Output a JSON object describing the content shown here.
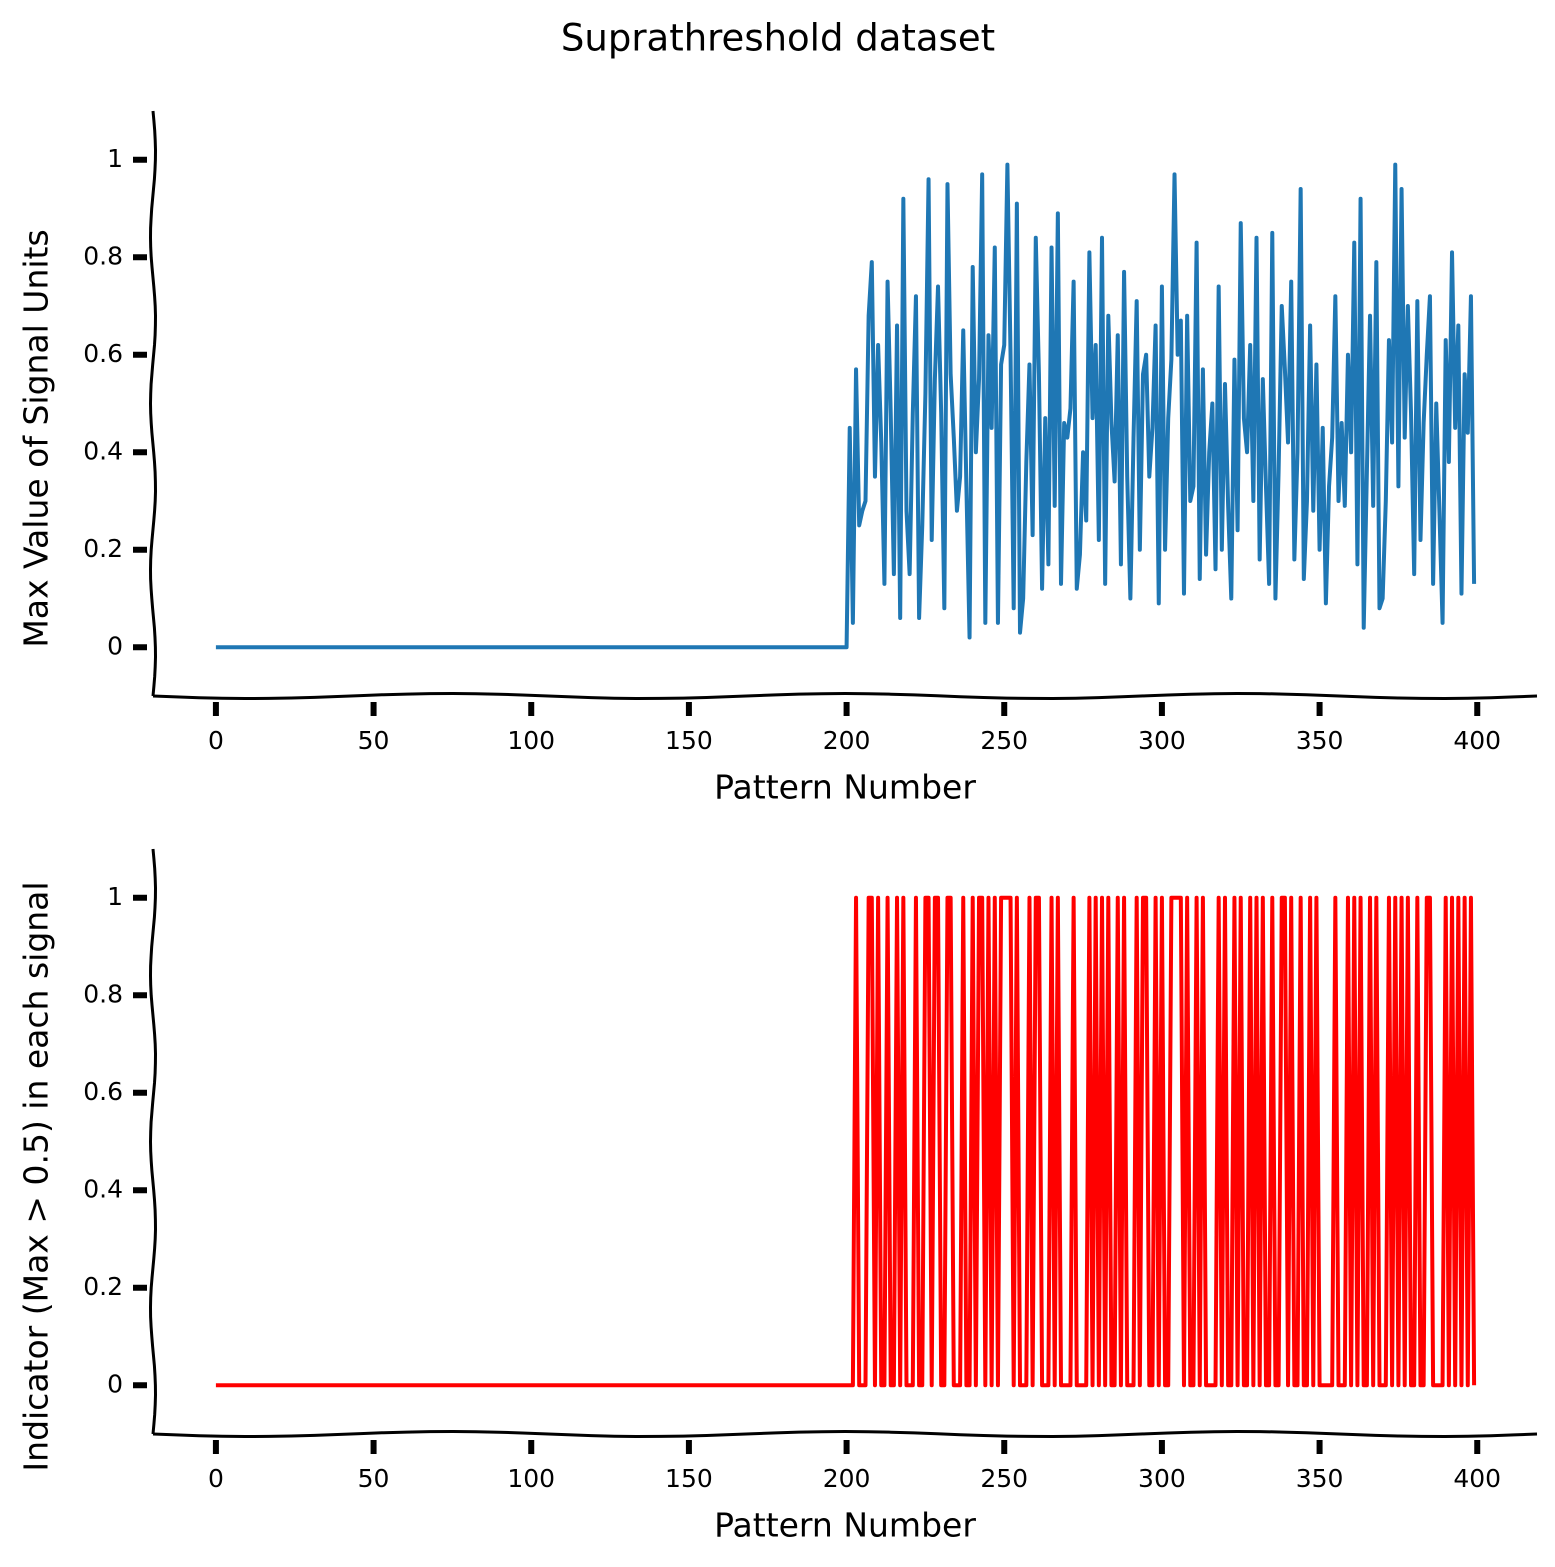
{
  "title": "Suprathreshold dataset",
  "chart_data": [
    {
      "type": "line",
      "xlabel": "Pattern Number",
      "ylabel": "Max Value of Signal Units",
      "xlim": [
        -19.95,
        418.95
      ],
      "xticks": [
        0,
        50,
        100,
        150,
        200,
        250,
        300,
        350,
        400
      ],
      "ylim": [
        -0.1,
        1.1
      ],
      "yticks": [
        0.0,
        0.2,
        0.4,
        0.6,
        0.8,
        1.0
      ],
      "series": [
        {
          "color": "#1f77b4",
          "values": [
            0,
            0,
            0,
            0,
            0,
            0,
            0,
            0,
            0,
            0,
            0,
            0,
            0,
            0,
            0,
            0,
            0,
            0,
            0,
            0,
            0,
            0,
            0,
            0,
            0,
            0,
            0,
            0,
            0,
            0,
            0,
            0,
            0,
            0,
            0,
            0,
            0,
            0,
            0,
            0,
            0,
            0,
            0,
            0,
            0,
            0,
            0,
            0,
            0,
            0,
            0,
            0,
            0,
            0,
            0,
            0,
            0,
            0,
            0,
            0,
            0,
            0,
            0,
            0,
            0,
            0,
            0,
            0,
            0,
            0,
            0,
            0,
            0,
            0,
            0,
            0,
            0,
            0,
            0,
            0,
            0,
            0,
            0,
            0,
            0,
            0,
            0,
            0,
            0,
            0,
            0,
            0,
            0,
            0,
            0,
            0,
            0,
            0,
            0,
            0,
            0,
            0,
            0,
            0,
            0,
            0,
            0,
            0,
            0,
            0,
            0,
            0,
            0,
            0,
            0,
            0,
            0,
            0,
            0,
            0,
            0,
            0,
            0,
            0,
            0,
            0,
            0,
            0,
            0,
            0,
            0,
            0,
            0,
            0,
            0,
            0,
            0,
            0,
            0,
            0,
            0,
            0,
            0,
            0,
            0,
            0,
            0,
            0,
            0,
            0,
            0,
            0,
            0,
            0,
            0,
            0,
            0,
            0,
            0,
            0,
            0,
            0,
            0,
            0,
            0,
            0,
            0,
            0,
            0,
            0,
            0,
            0,
            0,
            0,
            0,
            0,
            0,
            0,
            0,
            0,
            0,
            0,
            0,
            0,
            0,
            0,
            0,
            0,
            0,
            0,
            0,
            0,
            0,
            0,
            0,
            0,
            0,
            0,
            0,
            0,
            0.0,
            0.45,
            0.05,
            0.57,
            0.25,
            0.28,
            0.3,
            0.68,
            0.79,
            0.35,
            0.62,
            0.42,
            0.13,
            0.75,
            0.48,
            0.15,
            0.66,
            0.06,
            0.92,
            0.28,
            0.15,
            0.48,
            0.72,
            0.06,
            0.25,
            0.52,
            0.96,
            0.22,
            0.55,
            0.74,
            0.48,
            0.08,
            0.95,
            0.56,
            0.43,
            0.28,
            0.35,
            0.65,
            0.33,
            0.02,
            0.78,
            0.4,
            0.55,
            0.97,
            0.05,
            0.64,
            0.45,
            0.82,
            0.05,
            0.58,
            0.62,
            0.99,
            0.6,
            0.08,
            0.91,
            0.03,
            0.1,
            0.38,
            0.58,
            0.23,
            0.84,
            0.56,
            0.12,
            0.47,
            0.17,
            0.82,
            0.29,
            0.89,
            0.13,
            0.46,
            0.43,
            0.49,
            0.75,
            0.12,
            0.19,
            0.4,
            0.26,
            0.81,
            0.47,
            0.62,
            0.22,
            0.84,
            0.13,
            0.68,
            0.46,
            0.34,
            0.64,
            0.17,
            0.77,
            0.35,
            0.1,
            0.43,
            0.71,
            0.2,
            0.56,
            0.6,
            0.35,
            0.45,
            0.66,
            0.09,
            0.74,
            0.2,
            0.47,
            0.59,
            0.97,
            0.6,
            0.67,
            0.11,
            0.68,
            0.3,
            0.33,
            0.83,
            0.14,
            0.57,
            0.19,
            0.4,
            0.5,
            0.16,
            0.74,
            0.2,
            0.54,
            0.29,
            0.1,
            0.59,
            0.24,
            0.87,
            0.47,
            0.4,
            0.62,
            0.3,
            0.84,
            0.18,
            0.55,
            0.33,
            0.13,
            0.85,
            0.1,
            0.36,
            0.7,
            0.57,
            0.42,
            0.75,
            0.18,
            0.4,
            0.94,
            0.14,
            0.3,
            0.66,
            0.28,
            0.58,
            0.2,
            0.45,
            0.09,
            0.33,
            0.43,
            0.72,
            0.3,
            0.46,
            0.29,
            0.6,
            0.4,
            0.83,
            0.17,
            0.92,
            0.04,
            0.36,
            0.68,
            0.29,
            0.79,
            0.08,
            0.1,
            0.3,
            0.63,
            0.42,
            0.99,
            0.33,
            0.94,
            0.43,
            0.7,
            0.48,
            0.15,
            0.71,
            0.22,
            0.46,
            0.6,
            0.72,
            0.13,
            0.5,
            0.28,
            0.05,
            0.63,
            0.38,
            0.81,
            0.45,
            0.66,
            0.11,
            0.56,
            0.44,
            0.72,
            0.13
          ]
        }
      ]
    },
    {
      "type": "line",
      "xlabel": "Pattern Number",
      "ylabel": "Indicator (Max > 0.5) in each signal",
      "xlim": [
        -19.95,
        418.95
      ],
      "xticks": [
        0,
        50,
        100,
        150,
        200,
        250,
        300,
        350,
        400
      ],
      "ylim": [
        -0.1,
        1.1
      ],
      "yticks": [
        0.0,
        0.2,
        0.4,
        0.6,
        0.8,
        1.0
      ],
      "series": [
        {
          "color": "#ff0000",
          "values": [
            0,
            0,
            0,
            0,
            0,
            0,
            0,
            0,
            0,
            0,
            0,
            0,
            0,
            0,
            0,
            0,
            0,
            0,
            0,
            0,
            0,
            0,
            0,
            0,
            0,
            0,
            0,
            0,
            0,
            0,
            0,
            0,
            0,
            0,
            0,
            0,
            0,
            0,
            0,
            0,
            0,
            0,
            0,
            0,
            0,
            0,
            0,
            0,
            0,
            0,
            0,
            0,
            0,
            0,
            0,
            0,
            0,
            0,
            0,
            0,
            0,
            0,
            0,
            0,
            0,
            0,
            0,
            0,
            0,
            0,
            0,
            0,
            0,
            0,
            0,
            0,
            0,
            0,
            0,
            0,
            0,
            0,
            0,
            0,
            0,
            0,
            0,
            0,
            0,
            0,
            0,
            0,
            0,
            0,
            0,
            0,
            0,
            0,
            0,
            0,
            0,
            0,
            0,
            0,
            0,
            0,
            0,
            0,
            0,
            0,
            0,
            0,
            0,
            0,
            0,
            0,
            0,
            0,
            0,
            0,
            0,
            0,
            0,
            0,
            0,
            0,
            0,
            0,
            0,
            0,
            0,
            0,
            0,
            0,
            0,
            0,
            0,
            0,
            0,
            0,
            0,
            0,
            0,
            0,
            0,
            0,
            0,
            0,
            0,
            0,
            0,
            0,
            0,
            0,
            0,
            0,
            0,
            0,
            0,
            0,
            0,
            0,
            0,
            0,
            0,
            0,
            0,
            0,
            0,
            0,
            0,
            0,
            0,
            0,
            0,
            0,
            0,
            0,
            0,
            0,
            0,
            0,
            0,
            0,
            0,
            0,
            0,
            0,
            0,
            0,
            0,
            0,
            0,
            0,
            0,
            0,
            0,
            0,
            0,
            0,
            0,
            0,
            0,
            1,
            0,
            0,
            0,
            1,
            1,
            0,
            1,
            0,
            0,
            1,
            0,
            0,
            1,
            0,
            1,
            0,
            0,
            0,
            1,
            0,
            0,
            1,
            1,
            0,
            1,
            1,
            0,
            0,
            1,
            1,
            0,
            0,
            0,
            1,
            0,
            0,
            1,
            0,
            1,
            1,
            0,
            1,
            0,
            1,
            0,
            1,
            1,
            1,
            1,
            0,
            1,
            0,
            0,
            0,
            1,
            0,
            1,
            1,
            0,
            0,
            0,
            1,
            0,
            1,
            0,
            0,
            0,
            0,
            1,
            0,
            0,
            0,
            0,
            1,
            0,
            1,
            0,
            1,
            0,
            1,
            0,
            0,
            1,
            0,
            1,
            0,
            0,
            0,
            1,
            0,
            1,
            1,
            0,
            0,
            1,
            0,
            1,
            0,
            0,
            1,
            1,
            1,
            1,
            0,
            1,
            0,
            0,
            1,
            0,
            1,
            0,
            0,
            0,
            0,
            1,
            0,
            1,
            0,
            0,
            1,
            0,
            1,
            0,
            0,
            1,
            0,
            1,
            0,
            1,
            0,
            0,
            1,
            0,
            0,
            1,
            1,
            0,
            1,
            0,
            0,
            1,
            0,
            0,
            1,
            0,
            1,
            0,
            0,
            0,
            0,
            0,
            1,
            0,
            0,
            0,
            1,
            0,
            1,
            0,
            1,
            0,
            0,
            1,
            0,
            1,
            0,
            0,
            0,
            1,
            0,
            1,
            0,
            1,
            0,
            1,
            0,
            0,
            1,
            0,
            0,
            1,
            1,
            0,
            0,
            0,
            0,
            1,
            0,
            1,
            0,
            1,
            0,
            1,
            0,
            1,
            0
          ]
        }
      ]
    }
  ]
}
